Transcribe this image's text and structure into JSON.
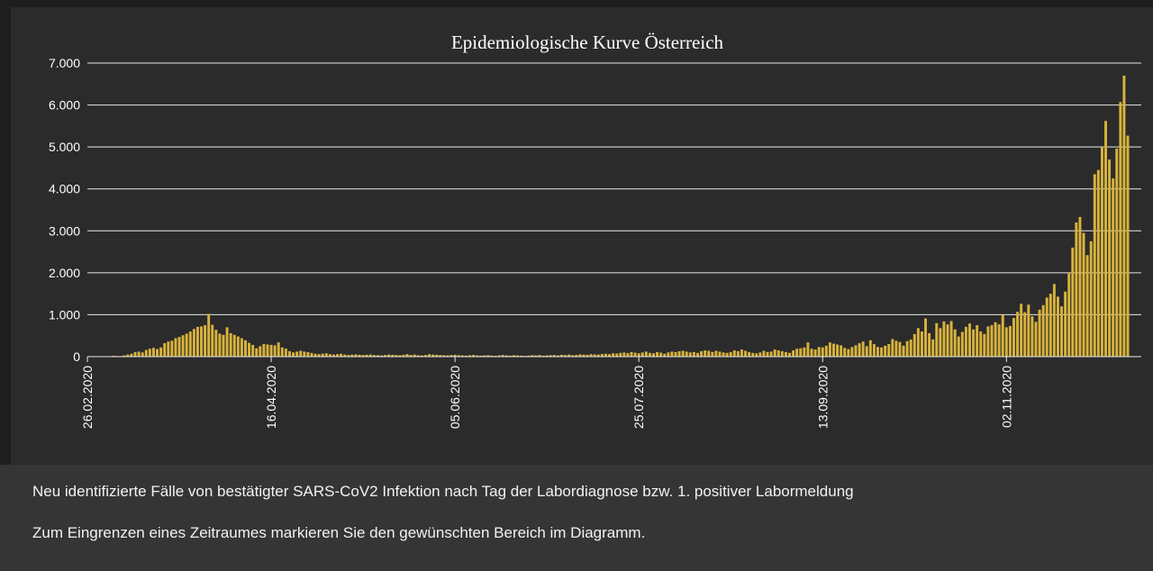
{
  "colors": {
    "page_background": "#1e1e1e",
    "chart_background": "#2b2b2b",
    "footer_background": "#353535",
    "bar": "#d8b33c",
    "grid": "#e8e8e8",
    "text": "#ffffff"
  },
  "chart_data": {
    "type": "bar",
    "title": "Epidemiologische Kurve Österreich",
    "xlabel": "",
    "ylabel": "",
    "ylim": [
      0,
      7000
    ],
    "y_ticks": [
      0,
      1000,
      2000,
      3000,
      4000,
      5000,
      6000,
      7000
    ],
    "y_tick_labels": [
      "0",
      "1.000",
      "2.000",
      "3.000",
      "4.000",
      "5.000",
      "6.000",
      "7.000"
    ],
    "x_start": "2020-02-26",
    "x_tick_labels": [
      "26.02.2020",
      "16.04.2020",
      "05.06.2020",
      "25.07.2020",
      "13.09.2020",
      "02.11.2020"
    ],
    "grid": true,
    "bar_color": "#d8b33c",
    "values": [
      0,
      1,
      2,
      3,
      5,
      8,
      10,
      20,
      15,
      12,
      30,
      50,
      70,
      110,
      120,
      100,
      160,
      190,
      210,
      180,
      220,
      320,
      360,
      380,
      440,
      470,
      510,
      550,
      600,
      660,
      710,
      720,
      750,
      1020,
      760,
      640,
      550,
      520,
      700,
      560,
      520,
      480,
      440,
      390,
      330,
      280,
      200,
      250,
      300,
      290,
      280,
      270,
      340,
      220,
      190,
      130,
      100,
      120,
      140,
      120,
      110,
      90,
      70,
      60,
      70,
      80,
      60,
      50,
      60,
      70,
      50,
      40,
      50,
      55,
      45,
      40,
      45,
      50,
      40,
      35,
      30,
      40,
      50,
      45,
      40,
      35,
      45,
      60,
      40,
      50,
      35,
      30,
      40,
      60,
      50,
      45,
      40,
      35,
      30,
      40,
      45,
      35,
      30,
      25,
      35,
      40,
      30,
      25,
      30,
      35,
      25,
      20,
      30,
      40,
      30,
      25,
      35,
      30,
      25,
      20,
      25,
      35,
      30,
      40,
      25,
      30,
      35,
      40,
      30,
      45,
      40,
      50,
      35,
      40,
      55,
      50,
      45,
      60,
      55,
      50,
      65,
      70,
      60,
      80,
      75,
      90,
      100,
      85,
      110,
      95,
      80,
      100,
      120,
      90,
      80,
      110,
      95,
      70,
      100,
      120,
      110,
      130,
      140,
      120,
      100,
      110,
      90,
      130,
      150,
      140,
      110,
      140,
      120,
      100,
      90,
      110,
      150,
      130,
      170,
      140,
      110,
      90,
      80,
      100,
      140,
      110,
      120,
      170,
      150,
      130,
      110,
      90,
      150,
      190,
      200,
      220,
      340,
      190,
      170,
      230,
      220,
      260,
      340,
      310,
      290,
      270,
      210,
      180,
      230,
      270,
      320,
      360,
      250,
      390,
      300,
      230,
      220,
      260,
      300,
      420,
      380,
      350,
      260,
      370,
      410,
      540,
      680,
      600,
      910,
      560,
      410,
      800,
      680,
      840,
      770,
      850,
      650,
      480,
      590,
      710,
      790,
      650,
      750,
      600,
      540,
      720,
      750,
      820,
      770,
      1000,
      700,
      730,
      920,
      1070,
      1260,
      1060,
      1240,
      960,
      830,
      1120,
      1230,
      1410,
      1500,
      1730,
      1430,
      1200,
      1550,
      2000,
      2600,
      3200,
      3330,
      2950,
      2420,
      2750,
      4350,
      4450,
      5000,
      5620,
      4700,
      4250,
      4960,
      6070,
      6700,
      5270
    ]
  },
  "footer": {
    "line1": "Neu identifizierte Fälle von bestätigter SARS-CoV2 Infektion nach Tag der Labordiagnose bzw. 1. positiver Labormeldung",
    "line2": "Zum Eingrenzen eines Zeitraumes markieren Sie den gewünschten Bereich im Diagramm."
  }
}
